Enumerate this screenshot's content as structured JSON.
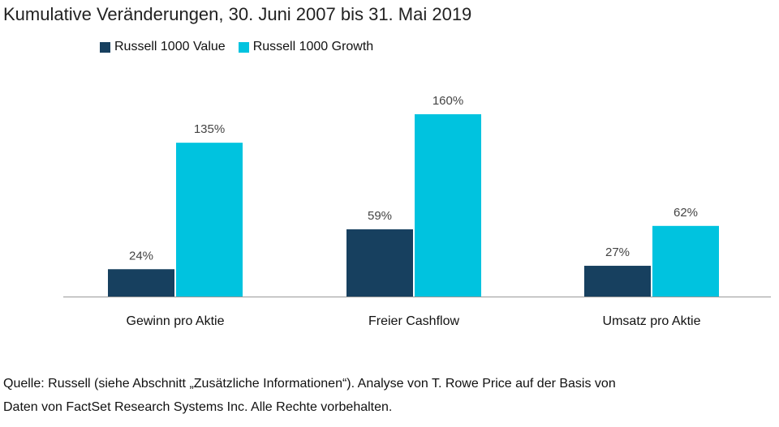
{
  "chart_data": {
    "type": "bar",
    "title": "Kumulative Veränderungen, 30. Juni 2007 bis 31. Mai 2019",
    "categories": [
      "Gewinn pro Aktie",
      "Freier Cashflow",
      "Umsatz pro Aktie"
    ],
    "series": [
      {
        "name": "Russell 1000 Value",
        "values": [
          24,
          59,
          27
        ],
        "labels": [
          "24%",
          "59%",
          "27%"
        ],
        "color": "#17405f"
      },
      {
        "name": "Russell 1000 Growth",
        "values": [
          135,
          160,
          62
        ],
        "labels": [
          "135%",
          "160%",
          "62%"
        ],
        "color": "#00c3df"
      }
    ],
    "xlabel": "",
    "ylabel": "",
    "ylim": [
      0,
      160
    ],
    "grid": false,
    "legend": "top-left"
  },
  "source": {
    "line1": "Quelle: Russell (siehe Abschnitt „Zusätzliche Informationen“). Analyse von T. Rowe Price auf der Basis von",
    "line2": "Daten von FactSet Research Systems Inc. Alle Rechte vorbehalten."
  }
}
